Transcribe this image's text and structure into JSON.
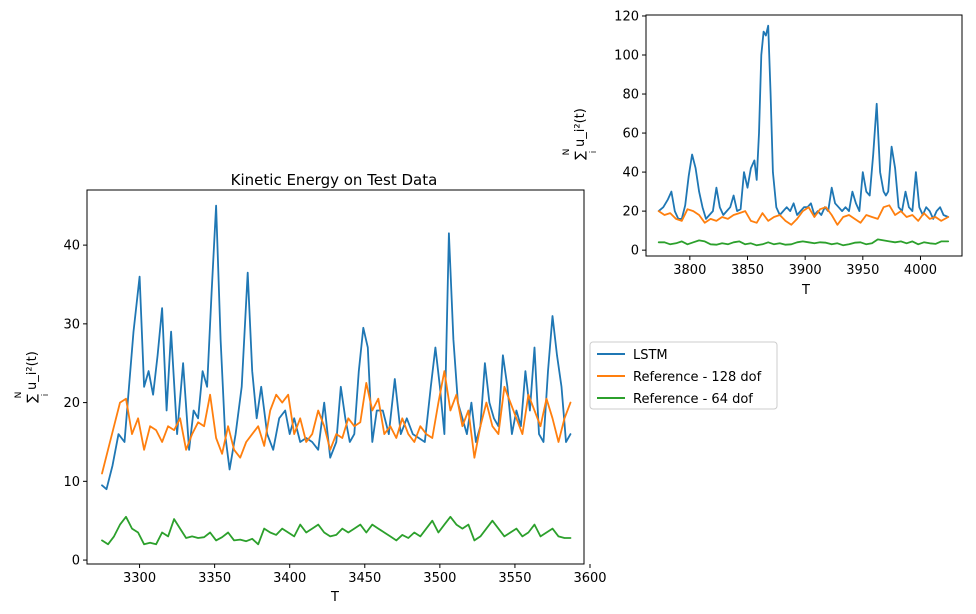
{
  "chart_data": [
    {
      "type": "line",
      "title": "Kinetic Energy on Test Data",
      "xlabel": "T",
      "ylabel": "∑ u_i²(t)",
      "ylabel_sup": "N",
      "ylabel_sub": "i",
      "xlim": [
        3265,
        3596
      ],
      "ylim": [
        -0.5,
        47
      ],
      "xticks": [
        "3300",
        "3350",
        "3400",
        "3450",
        "3500",
        "3550",
        "3600"
      ],
      "yticks": [
        "0",
        "10",
        "20",
        "30",
        "40"
      ],
      "series": [
        {
          "name": "LSTM",
          "color": "#1f77b4",
          "x": [
            3275,
            3278,
            3282,
            3286,
            3290,
            3293,
            3296,
            3300,
            3303,
            3306,
            3309,
            3312,
            3315,
            3318,
            3321,
            3325,
            3329,
            3333,
            3336,
            3339,
            3342,
            3345,
            3348,
            3351,
            3354,
            3357,
            3360,
            3364,
            3368,
            3372,
            3375,
            3378,
            3381,
            3385,
            3389,
            3393,
            3397,
            3400,
            3403,
            3407,
            3411,
            3415,
            3419,
            3423,
            3427,
            3431,
            3434,
            3437,
            3440,
            3443,
            3446,
            3449,
            3452,
            3455,
            3458,
            3462,
            3466,
            3470,
            3474,
            3478,
            3482,
            3486,
            3490,
            3494,
            3497,
            3500,
            3503,
            3506,
            3509,
            3512,
            3515,
            3518,
            3521,
            3524,
            3527,
            3530,
            3533,
            3536,
            3539,
            3542,
            3545,
            3548,
            3551,
            3554,
            3557,
            3560,
            3563,
            3566,
            3569,
            3572,
            3575,
            3578,
            3581,
            3584,
            3587
          ],
          "y": [
            9.5,
            9,
            12,
            16,
            15,
            22,
            29,
            36,
            22,
            24,
            21,
            26,
            32,
            19,
            29,
            16,
            25,
            14,
            19,
            18,
            24,
            22,
            34,
            45,
            28,
            16,
            11.5,
            16,
            22,
            36.5,
            24,
            18,
            22,
            16,
            14,
            18,
            19,
            16,
            18,
            15,
            15.5,
            15,
            14,
            20,
            13,
            15,
            22,
            18,
            15,
            16,
            24,
            29.5,
            27,
            15,
            19,
            19,
            16,
            23,
            16,
            18,
            16,
            15.5,
            15,
            22,
            27,
            22,
            16,
            41.5,
            28,
            20,
            18,
            16,
            20,
            15,
            17,
            25,
            20,
            18,
            17,
            26,
            22,
            16,
            19,
            17,
            24,
            19,
            27,
            16,
            15,
            24,
            31,
            26,
            22,
            15,
            16
          ]
        },
        {
          "name": "Reference - 128 dof",
          "color": "#ff7f0e",
          "x": [
            3275,
            3279,
            3283,
            3287,
            3291,
            3295,
            3299,
            3303,
            3307,
            3311,
            3315,
            3319,
            3323,
            3327,
            3331,
            3335,
            3339,
            3343,
            3347,
            3351,
            3355,
            3359,
            3363,
            3367,
            3371,
            3375,
            3379,
            3383,
            3387,
            3391,
            3395,
            3399,
            3403,
            3407,
            3411,
            3415,
            3419,
            3423,
            3427,
            3431,
            3435,
            3439,
            3443,
            3447,
            3451,
            3455,
            3459,
            3463,
            3467,
            3471,
            3475,
            3479,
            3483,
            3487,
            3491,
            3495,
            3499,
            3503,
            3507,
            3511,
            3515,
            3519,
            3523,
            3527,
            3531,
            3535,
            3539,
            3543,
            3547,
            3551,
            3555,
            3559,
            3563,
            3567,
            3571,
            3575,
            3579,
            3583,
            3587
          ],
          "y": [
            11,
            14,
            17,
            20,
            20.5,
            16,
            18,
            14,
            17,
            16.5,
            15,
            17,
            16.5,
            18,
            14,
            16,
            17.5,
            17,
            21,
            15.5,
            13.5,
            17,
            14,
            13,
            15,
            16,
            17,
            14.5,
            19,
            21,
            20,
            21,
            16,
            18,
            15,
            16,
            19,
            17,
            14,
            16,
            15.5,
            18,
            17,
            17.5,
            22.5,
            19,
            20.5,
            16,
            17,
            15.5,
            18,
            16,
            15,
            17,
            16,
            15.5,
            20,
            24,
            19,
            21,
            17,
            19,
            13,
            17,
            20,
            17,
            16,
            22,
            20,
            18,
            16,
            21,
            19,
            17,
            20.5,
            18,
            15,
            18,
            20
          ]
        },
        {
          "name": "Reference - 64 dof",
          "color": "#2ca02c",
          "x": [
            3275,
            3279,
            3283,
            3287,
            3291,
            3295,
            3299,
            3303,
            3307,
            3311,
            3315,
            3319,
            3323,
            3327,
            3331,
            3335,
            3339,
            3343,
            3347,
            3351,
            3355,
            3359,
            3363,
            3367,
            3371,
            3375,
            3379,
            3383,
            3387,
            3391,
            3395,
            3399,
            3403,
            3407,
            3411,
            3415,
            3419,
            3423,
            3427,
            3431,
            3435,
            3439,
            3443,
            3447,
            3451,
            3455,
            3459,
            3463,
            3467,
            3471,
            3475,
            3479,
            3483,
            3487,
            3491,
            3495,
            3499,
            3503,
            3507,
            3511,
            3515,
            3519,
            3523,
            3527,
            3531,
            3535,
            3539,
            3543,
            3547,
            3551,
            3555,
            3559,
            3563,
            3567,
            3571,
            3575,
            3579,
            3583,
            3587
          ],
          "y": [
            2.5,
            2,
            3,
            4.5,
            5.5,
            4,
            3.5,
            2,
            2.2,
            2,
            3.5,
            3,
            5.2,
            4,
            2.8,
            3,
            2.8,
            2.9,
            3.5,
            2.5,
            2.9,
            3.5,
            2.5,
            2.6,
            2.4,
            2.7,
            2,
            4,
            3.5,
            3.2,
            4,
            3.5,
            3,
            4.5,
            3.5,
            4,
            4.5,
            3.5,
            3,
            3.2,
            4,
            3.5,
            4,
            4.5,
            3.5,
            4.5,
            4,
            3.5,
            3,
            2.5,
            3.2,
            2.8,
            3.5,
            3,
            4,
            5,
            3.5,
            4.5,
            5.5,
            4.5,
            4,
            4.5,
            2.5,
            3,
            4,
            5,
            4,
            3,
            3.5,
            4,
            3,
            3.5,
            4.5,
            3,
            3.5,
            4,
            3,
            2.8,
            2.8
          ]
        }
      ],
      "legend": {
        "placement": "outside-right",
        "entries": [
          "LSTM",
          "Reference - 128 dof",
          "Reference - 64 dof"
        ]
      }
    },
    {
      "type": "line",
      "title": "",
      "xlabel": "T",
      "ylabel": "∑ u_i²(t)",
      "ylabel_sup": "N",
      "ylabel_sub": "i",
      "xlim": [
        3762,
        4036
      ],
      "ylim": [
        -3,
        120.5
      ],
      "xticks": [
        "3800",
        "3850",
        "3900",
        "3950",
        "4000"
      ],
      "yticks": [
        "0",
        "20",
        "40",
        "60",
        "80",
        "100",
        "120"
      ],
      "series": [
        {
          "name": "LSTM",
          "color": "#1f77b4",
          "x": [
            3773,
            3777,
            3781,
            3784,
            3787,
            3790,
            3793,
            3796,
            3799,
            3802,
            3805,
            3808,
            3811,
            3814,
            3817,
            3820,
            3823,
            3826,
            3829,
            3832,
            3835,
            3838,
            3841,
            3844,
            3847,
            3850,
            3853,
            3856,
            3858,
            3860,
            3862,
            3864,
            3866,
            3868,
            3870,
            3872,
            3875,
            3878,
            3881,
            3884,
            3887,
            3890,
            3893,
            3896,
            3899,
            3902,
            3905,
            3908,
            3911,
            3914,
            3917,
            3920,
            3923,
            3926,
            3929,
            3932,
            3935,
            3938,
            3941,
            3944,
            3947,
            3950,
            3953,
            3956,
            3959,
            3962,
            3965,
            3968,
            3970,
            3972,
            3975,
            3978,
            3981,
            3984,
            3987,
            3990,
            3993,
            3996,
            3999,
            4002,
            4005,
            4008,
            4011,
            4014,
            4017,
            4020,
            4024
          ],
          "y": [
            20,
            22,
            26,
            30,
            20,
            16,
            16,
            23,
            38,
            49,
            42,
            30,
            22,
            16,
            18,
            20,
            32,
            22,
            18,
            20,
            22,
            28,
            20,
            21,
            40,
            32,
            42,
            46,
            36,
            60,
            100,
            112,
            110,
            115,
            80,
            40,
            22,
            18,
            20,
            22,
            20,
            24,
            18,
            20,
            22,
            22,
            24,
            18,
            20,
            18,
            22,
            20,
            32,
            24,
            22,
            20,
            22,
            20,
            30,
            24,
            20,
            40,
            30,
            28,
            49,
            75,
            40,
            30,
            28,
            30,
            53,
            42,
            22,
            20,
            30,
            22,
            20,
            40,
            22,
            18,
            22,
            20,
            16,
            20,
            22,
            18,
            17
          ]
        },
        {
          "name": "Reference - 128 dof",
          "color": "#ff7f0e",
          "x": [
            3773,
            3778,
            3783,
            3788,
            3793,
            3798,
            3803,
            3808,
            3813,
            3818,
            3823,
            3828,
            3833,
            3838,
            3843,
            3848,
            3853,
            3858,
            3863,
            3868,
            3873,
            3878,
            3883,
            3888,
            3893,
            3898,
            3903,
            3908,
            3913,
            3918,
            3923,
            3928,
            3933,
            3938,
            3943,
            3948,
            3953,
            3958,
            3963,
            3968,
            3973,
            3978,
            3983,
            3988,
            3993,
            3998,
            4003,
            4008,
            4013,
            4018,
            4024
          ],
          "y": [
            20,
            18,
            19,
            16,
            15,
            21,
            20,
            18,
            14,
            16,
            15,
            17,
            16,
            18,
            19,
            20,
            15,
            14,
            19,
            15,
            17,
            18,
            15,
            13,
            16,
            20,
            22,
            17,
            21,
            22,
            18,
            13,
            17,
            18,
            16,
            14,
            18,
            17,
            16,
            22,
            23,
            18,
            20,
            17,
            18,
            15,
            19,
            16,
            17,
            15,
            17
          ]
        },
        {
          "name": "Reference - 64 dof",
          "color": "#2ca02c",
          "x": [
            3773,
            3778,
            3783,
            3788,
            3793,
            3798,
            3803,
            3808,
            3813,
            3818,
            3823,
            3828,
            3833,
            3838,
            3843,
            3848,
            3853,
            3858,
            3863,
            3868,
            3873,
            3878,
            3883,
            3888,
            3893,
            3898,
            3903,
            3908,
            3913,
            3918,
            3923,
            3928,
            3933,
            3938,
            3943,
            3948,
            3953,
            3958,
            3963,
            3968,
            3973,
            3978,
            3983,
            3988,
            3993,
            3998,
            4003,
            4008,
            4013,
            4018,
            4024
          ],
          "y": [
            4,
            4,
            3,
            3.5,
            4.5,
            3,
            4,
            5,
            4.5,
            3,
            2.8,
            3.5,
            3,
            4,
            4.5,
            3,
            3.5,
            2.5,
            3,
            4,
            3,
            3.5,
            2.8,
            3,
            4,
            4.5,
            4,
            3.5,
            4,
            3.8,
            3,
            3.5,
            2.5,
            3,
            3.8,
            4,
            3,
            3.5,
            5.5,
            5,
            4.5,
            4,
            4.5,
            3.5,
            4.5,
            3,
            4,
            3.5,
            3.2,
            4.5,
            4.5
          ]
        }
      ]
    }
  ]
}
